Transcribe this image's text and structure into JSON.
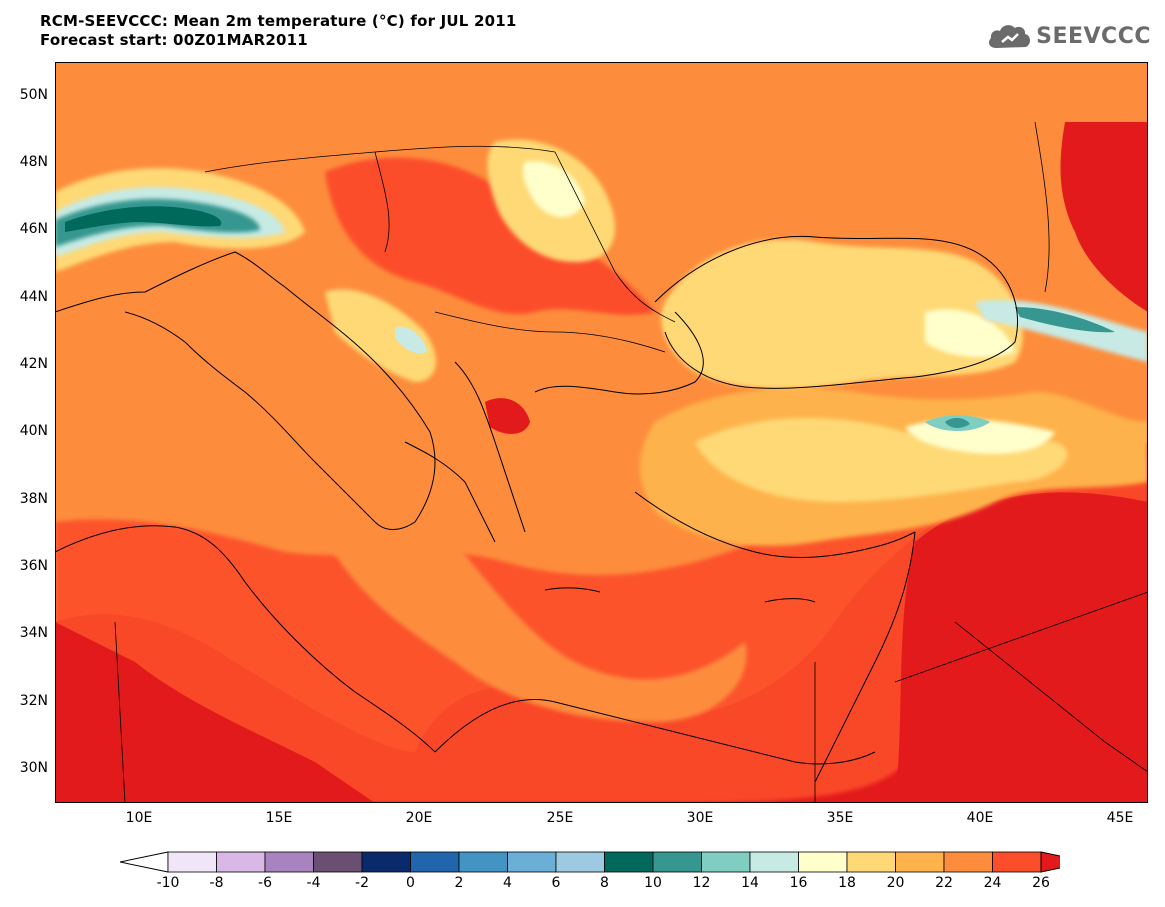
{
  "header": {
    "title_line1": "RCM-SEEVCCC: Mean 2m temperature (°C) for JUL 2011",
    "title_line2": "Forecast start: 00Z01MAR2011",
    "logo_text": "SEEVCCC",
    "logo_color": "#6b6b6b"
  },
  "map": {
    "lon_range": [
      7,
      46
    ],
    "lat_range": [
      29,
      51
    ],
    "lat_labels": [
      "50N",
      "48N",
      "46N",
      "44N",
      "42N",
      "40N",
      "38N",
      "36N",
      "34N",
      "32N",
      "30N"
    ],
    "lon_labels": [
      "10E",
      "15E",
      "20E",
      "25E",
      "30E",
      "35E",
      "40E",
      "45E"
    ],
    "background_color": "#fc8d3c"
  },
  "colorbar": {
    "labels": [
      "-10",
      "-8",
      "-6",
      "-4",
      "-2",
      "0",
      "2",
      "4",
      "6",
      "8",
      "10",
      "12",
      "14",
      "16",
      "18",
      "20",
      "22",
      "24",
      "26"
    ],
    "under_color": "#ffffff",
    "over_color": "#e31a1c",
    "colors": [
      "#f1e6f7",
      "#d9b8e6",
      "#a982c0",
      "#6a4f73",
      "#0b2a6b",
      "#2166ac",
      "#4393c3",
      "#6baed6",
      "#9ecae1",
      "#00695c",
      "#35978f",
      "#80cdc1",
      "#c7eae5",
      "#ffffcc",
      "#fed976",
      "#feb24c",
      "#fd8d3c",
      "#fc4e2a"
    ]
  }
}
